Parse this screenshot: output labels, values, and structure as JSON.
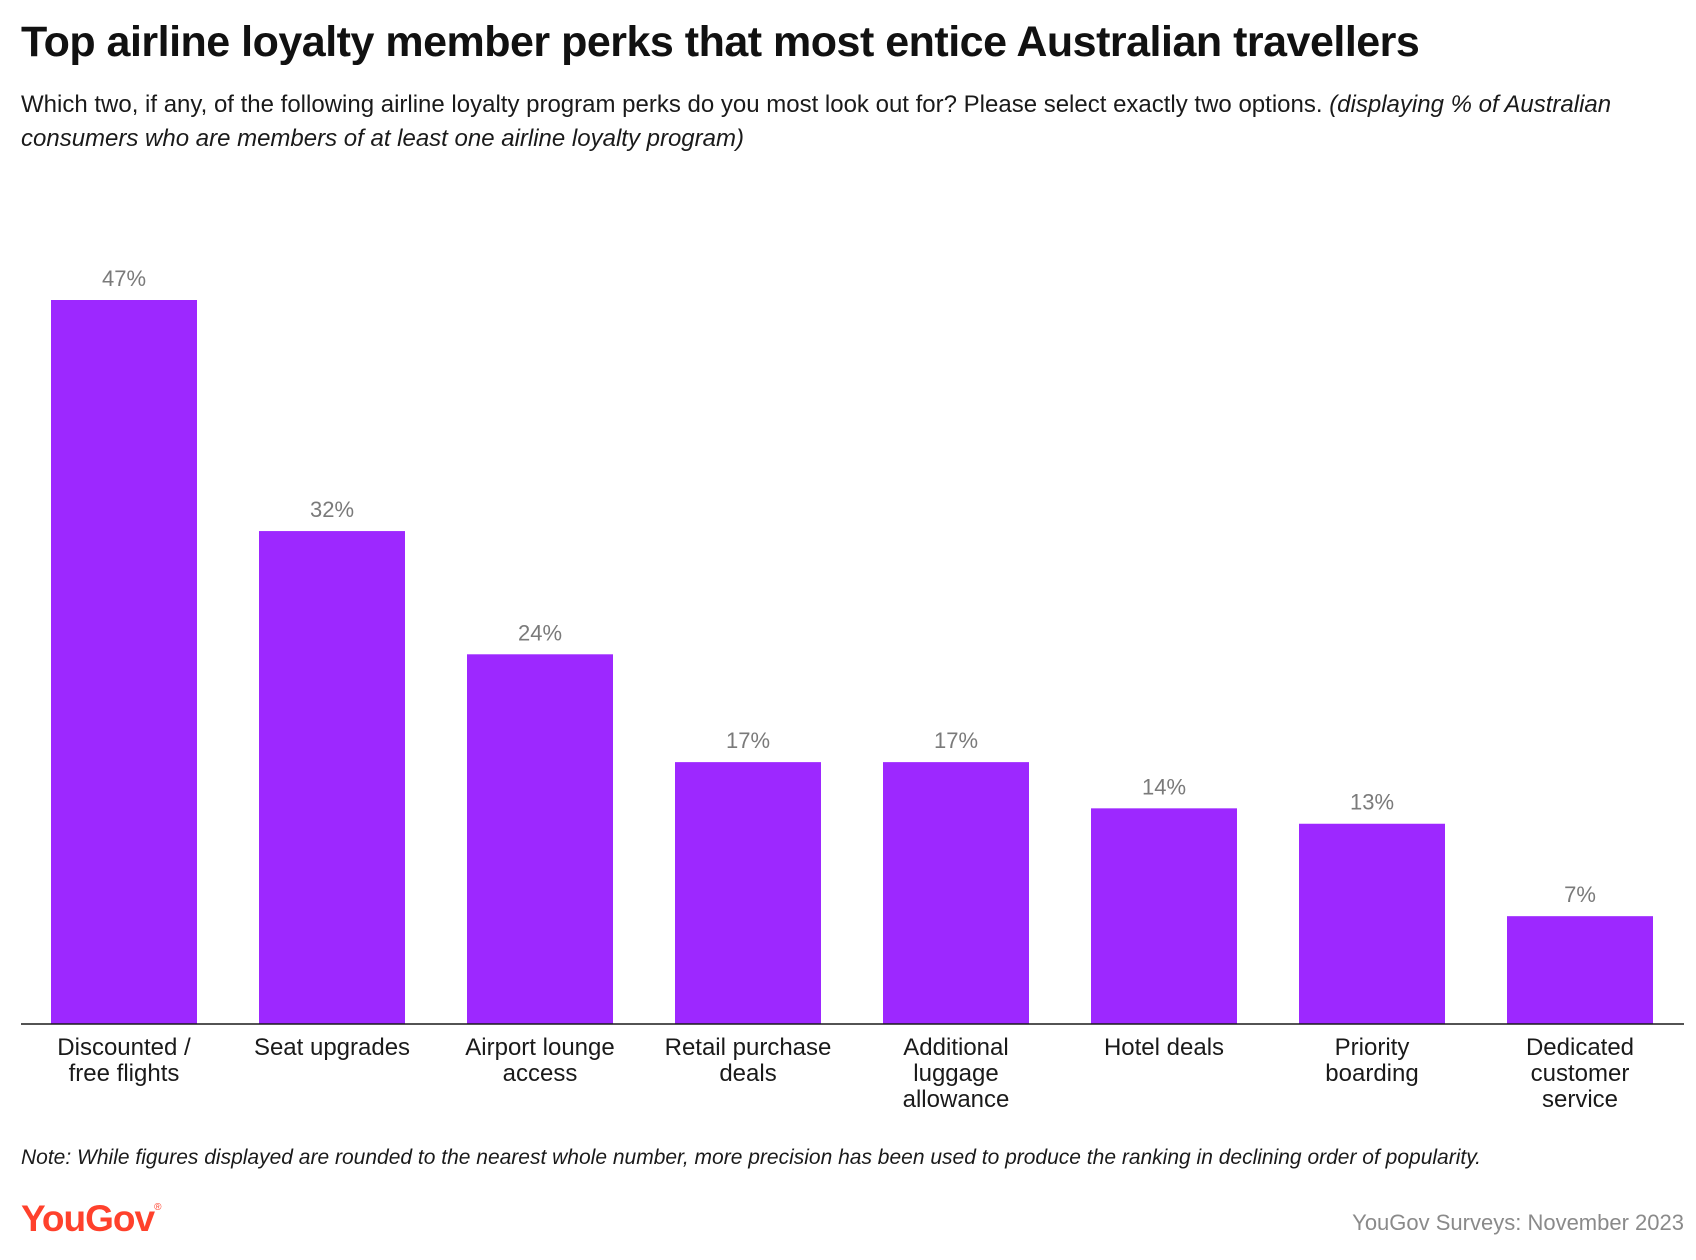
{
  "chart_data": {
    "type": "bar",
    "title": "Top airline loyalty member perks that most entice Australian travellers",
    "subtitle": "Which two, if any, of the following airline loyalty program perks do you most look out for? Please select exactly two options.",
    "subtitle_note": "(displaying % of Australian consumers who are members of at least one airline loyalty program)",
    "categories": [
      [
        "Discounted /",
        "free flights"
      ],
      [
        "Seat upgrades"
      ],
      [
        "Airport lounge",
        "access"
      ],
      [
        "Retail purchase",
        "deals"
      ],
      [
        "Additional",
        "luggage",
        "allowance"
      ],
      [
        "Hotel deals"
      ],
      [
        "Priority",
        "boarding"
      ],
      [
        "Dedicated",
        "customer",
        "service"
      ]
    ],
    "values": [
      47,
      32,
      24,
      17,
      17,
      14,
      13,
      7
    ],
    "value_labels": [
      "47%",
      "32%",
      "24%",
      "17%",
      "17%",
      "14%",
      "13%",
      "7%"
    ],
    "ylim": [
      0,
      47
    ],
    "grid": false,
    "bar_color": "#9d28ff",
    "value_label_color": "#7a7a7a"
  },
  "footer": {
    "note": "Note: While figures displayed are rounded to the nearest whole number, more precision has been used to produce the ranking in declining order of popularity.",
    "logo": "YouGov",
    "source": "YouGov Surveys: November 2023"
  },
  "colors": {
    "brand": "#ff412c"
  }
}
